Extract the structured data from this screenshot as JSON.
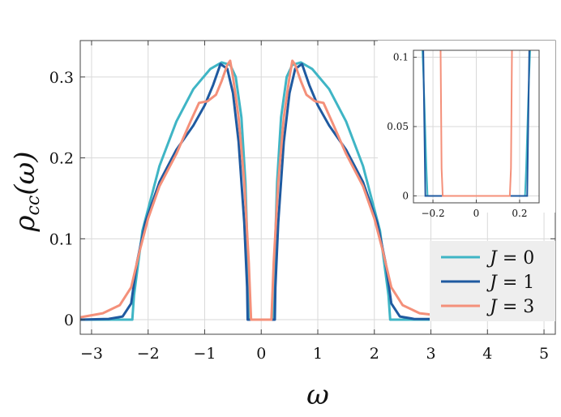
{
  "chart_data": {
    "type": "line",
    "xlabel": "ω",
    "ylabel": "ρcc(ω)",
    "ylabel_main": "ρ",
    "ylabel_sub": "cc",
    "ylabel_paren": "(ω)",
    "xlim": [
      -3.2,
      5.2
    ],
    "ylim": [
      -0.018,
      0.345
    ],
    "xticks": [
      -3,
      -2,
      -1,
      0,
      1,
      2,
      3,
      4,
      5
    ],
    "xtick_labels": [
      "−3",
      "−2",
      "−1",
      "0",
      "1",
      "2",
      "3",
      "4",
      "5"
    ],
    "yticks": [
      0,
      0.1,
      0.2,
      0.3
    ],
    "ytick_labels": [
      "0",
      "0.1",
      "0.2",
      "0.3"
    ],
    "grid": true,
    "legend_position": "bottom-right",
    "series": [
      {
        "name": "J = 0",
        "label_var": "J",
        "label_eq": " = 0",
        "color": "#3fb5c5",
        "points": [
          [
            -3.2,
            0
          ],
          [
            -2.28,
            0
          ],
          [
            -2.25,
            0.03
          ],
          [
            -2.1,
            0.11
          ],
          [
            -1.8,
            0.19
          ],
          [
            -1.5,
            0.245
          ],
          [
            -1.2,
            0.285
          ],
          [
            -0.9,
            0.31
          ],
          [
            -0.7,
            0.318
          ],
          [
            -0.55,
            0.315
          ],
          [
            -0.45,
            0.3
          ],
          [
            -0.35,
            0.25
          ],
          [
            -0.28,
            0.17
          ],
          [
            -0.24,
            0.08
          ],
          [
            -0.22,
            0
          ],
          [
            0.22,
            0
          ],
          [
            0.24,
            0.08
          ],
          [
            0.28,
            0.17
          ],
          [
            0.35,
            0.25
          ],
          [
            0.45,
            0.3
          ],
          [
            0.55,
            0.315
          ],
          [
            0.7,
            0.318
          ],
          [
            0.9,
            0.31
          ],
          [
            1.2,
            0.285
          ],
          [
            1.5,
            0.245
          ],
          [
            1.8,
            0.19
          ],
          [
            2.1,
            0.11
          ],
          [
            2.25,
            0.03
          ],
          [
            2.28,
            0
          ],
          [
            4.5,
            0
          ]
        ]
      },
      {
        "name": "J = 1",
        "label_var": "J",
        "label_eq": " = 1",
        "color": "#1f5aa0",
        "points": [
          [
            -3.2,
            0
          ],
          [
            -2.7,
            0.001
          ],
          [
            -2.45,
            0.004
          ],
          [
            -2.3,
            0.02
          ],
          [
            -2.2,
            0.07
          ],
          [
            -2.05,
            0.12
          ],
          [
            -1.8,
            0.17
          ],
          [
            -1.5,
            0.21
          ],
          [
            -1.2,
            0.24
          ],
          [
            -1.0,
            0.265
          ],
          [
            -0.85,
            0.29
          ],
          [
            -0.72,
            0.316
          ],
          [
            -0.6,
            0.31
          ],
          [
            -0.5,
            0.28
          ],
          [
            -0.4,
            0.22
          ],
          [
            -0.3,
            0.12
          ],
          [
            -0.25,
            0.04
          ],
          [
            -0.24,
            0
          ],
          [
            0.24,
            0
          ],
          [
            0.25,
            0.04
          ],
          [
            0.3,
            0.12
          ],
          [
            0.4,
            0.22
          ],
          [
            0.5,
            0.28
          ],
          [
            0.6,
            0.31
          ],
          [
            0.72,
            0.316
          ],
          [
            0.85,
            0.29
          ],
          [
            1.0,
            0.265
          ],
          [
            1.2,
            0.24
          ],
          [
            1.5,
            0.21
          ],
          [
            1.8,
            0.17
          ],
          [
            2.05,
            0.12
          ],
          [
            2.2,
            0.07
          ],
          [
            2.3,
            0.02
          ],
          [
            2.45,
            0.004
          ],
          [
            2.7,
            0.001
          ],
          [
            4.5,
            0
          ]
        ]
      },
      {
        "name": "J = 3",
        "label_var": "J",
        "label_eq": " = 3",
        "color": "#f4907a",
        "points": [
          [
            -3.2,
            0.003
          ],
          [
            -2.8,
            0.008
          ],
          [
            -2.5,
            0.018
          ],
          [
            -2.3,
            0.04
          ],
          [
            -2.15,
            0.085
          ],
          [
            -2.0,
            0.125
          ],
          [
            -1.8,
            0.165
          ],
          [
            -1.5,
            0.205
          ],
          [
            -1.25,
            0.245
          ],
          [
            -1.1,
            0.268
          ],
          [
            -0.95,
            0.27
          ],
          [
            -0.8,
            0.278
          ],
          [
            -0.7,
            0.295
          ],
          [
            -0.6,
            0.315
          ],
          [
            -0.55,
            0.32
          ],
          [
            -0.5,
            0.3
          ],
          [
            -0.4,
            0.25
          ],
          [
            -0.3,
            0.17
          ],
          [
            -0.22,
            0.07
          ],
          [
            -0.18,
            0
          ],
          [
            0.18,
            0
          ],
          [
            0.22,
            0.07
          ],
          [
            0.3,
            0.17
          ],
          [
            0.4,
            0.25
          ],
          [
            0.5,
            0.3
          ],
          [
            0.55,
            0.32
          ],
          [
            0.6,
            0.315
          ],
          [
            0.7,
            0.295
          ],
          [
            0.8,
            0.278
          ],
          [
            0.95,
            0.27
          ],
          [
            1.1,
            0.268
          ],
          [
            1.25,
            0.245
          ],
          [
            1.5,
            0.205
          ],
          [
            1.8,
            0.165
          ],
          [
            2.0,
            0.125
          ],
          [
            2.15,
            0.085
          ],
          [
            2.3,
            0.04
          ],
          [
            2.5,
            0.018
          ],
          [
            2.8,
            0.008
          ],
          [
            3.3,
            0.004
          ],
          [
            4.5,
            0.001
          ]
        ]
      }
    ],
    "inset": {
      "xlim": [
        -0.29,
        0.29
      ],
      "ylim": [
        -0.005,
        0.105
      ],
      "xticks": [
        -0.2,
        0,
        0.2
      ],
      "xtick_labels": [
        "−0.2",
        "0",
        "0.2"
      ],
      "yticks": [
        0,
        0.05,
        0.1
      ],
      "ytick_labels": [
        "0",
        "0.05",
        "0.1"
      ],
      "grid": true,
      "series": [
        {
          "color": "#3fb5c5",
          "points": [
            [
              -0.25,
              0.11
            ],
            [
              -0.24,
              0.07
            ],
            [
              -0.23,
              0.02
            ],
            [
              -0.225,
              0
            ],
            [
              0.225,
              0
            ],
            [
              0.23,
              0.02
            ],
            [
              0.24,
              0.07
            ],
            [
              0.25,
              0.11
            ]
          ]
        },
        {
          "color": "#1f5aa0",
          "points": [
            [
              -0.245,
              0.11
            ],
            [
              -0.235,
              0
            ],
            [
              0.235,
              0
            ],
            [
              0.245,
              0.11
            ]
          ]
        },
        {
          "color": "#f4907a",
          "points": [
            [
              -0.165,
              0.11
            ],
            [
              -0.16,
              0.02
            ],
            [
              -0.155,
              0
            ],
            [
              0.155,
              0
            ],
            [
              0.16,
              0.02
            ],
            [
              0.165,
              0.11
            ]
          ]
        }
      ]
    }
  }
}
